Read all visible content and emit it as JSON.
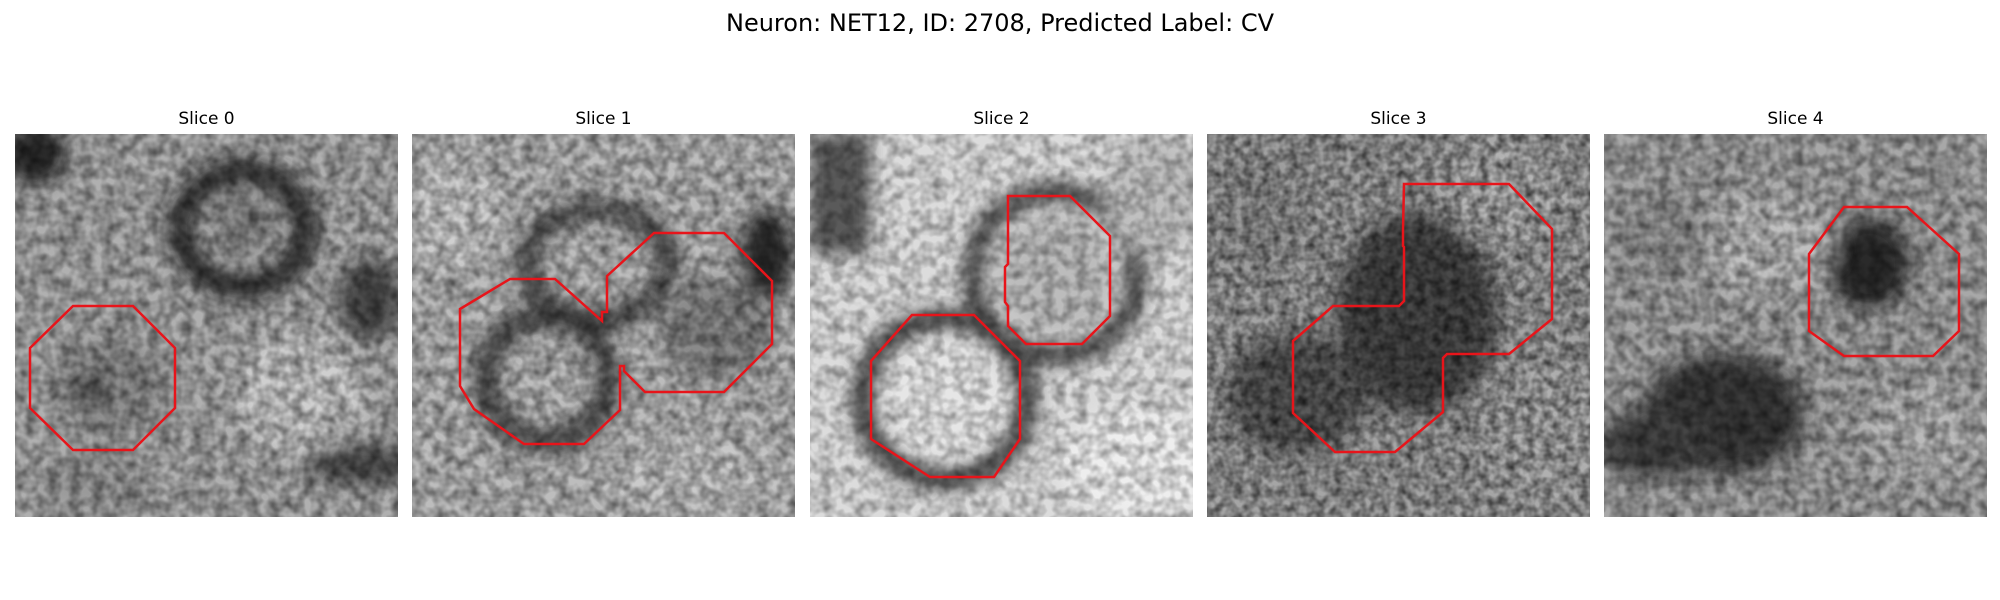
{
  "title": "Neuron: NET12, ID: 2708, Predicted Label: CV",
  "slices": [
    {
      "label": "Slice 0"
    },
    {
      "label": "Slice 1"
    },
    {
      "label": "Slice 2"
    },
    {
      "label": "Slice 3"
    },
    {
      "label": "Slice 4"
    }
  ],
  "contour_color": "#e8141a"
}
